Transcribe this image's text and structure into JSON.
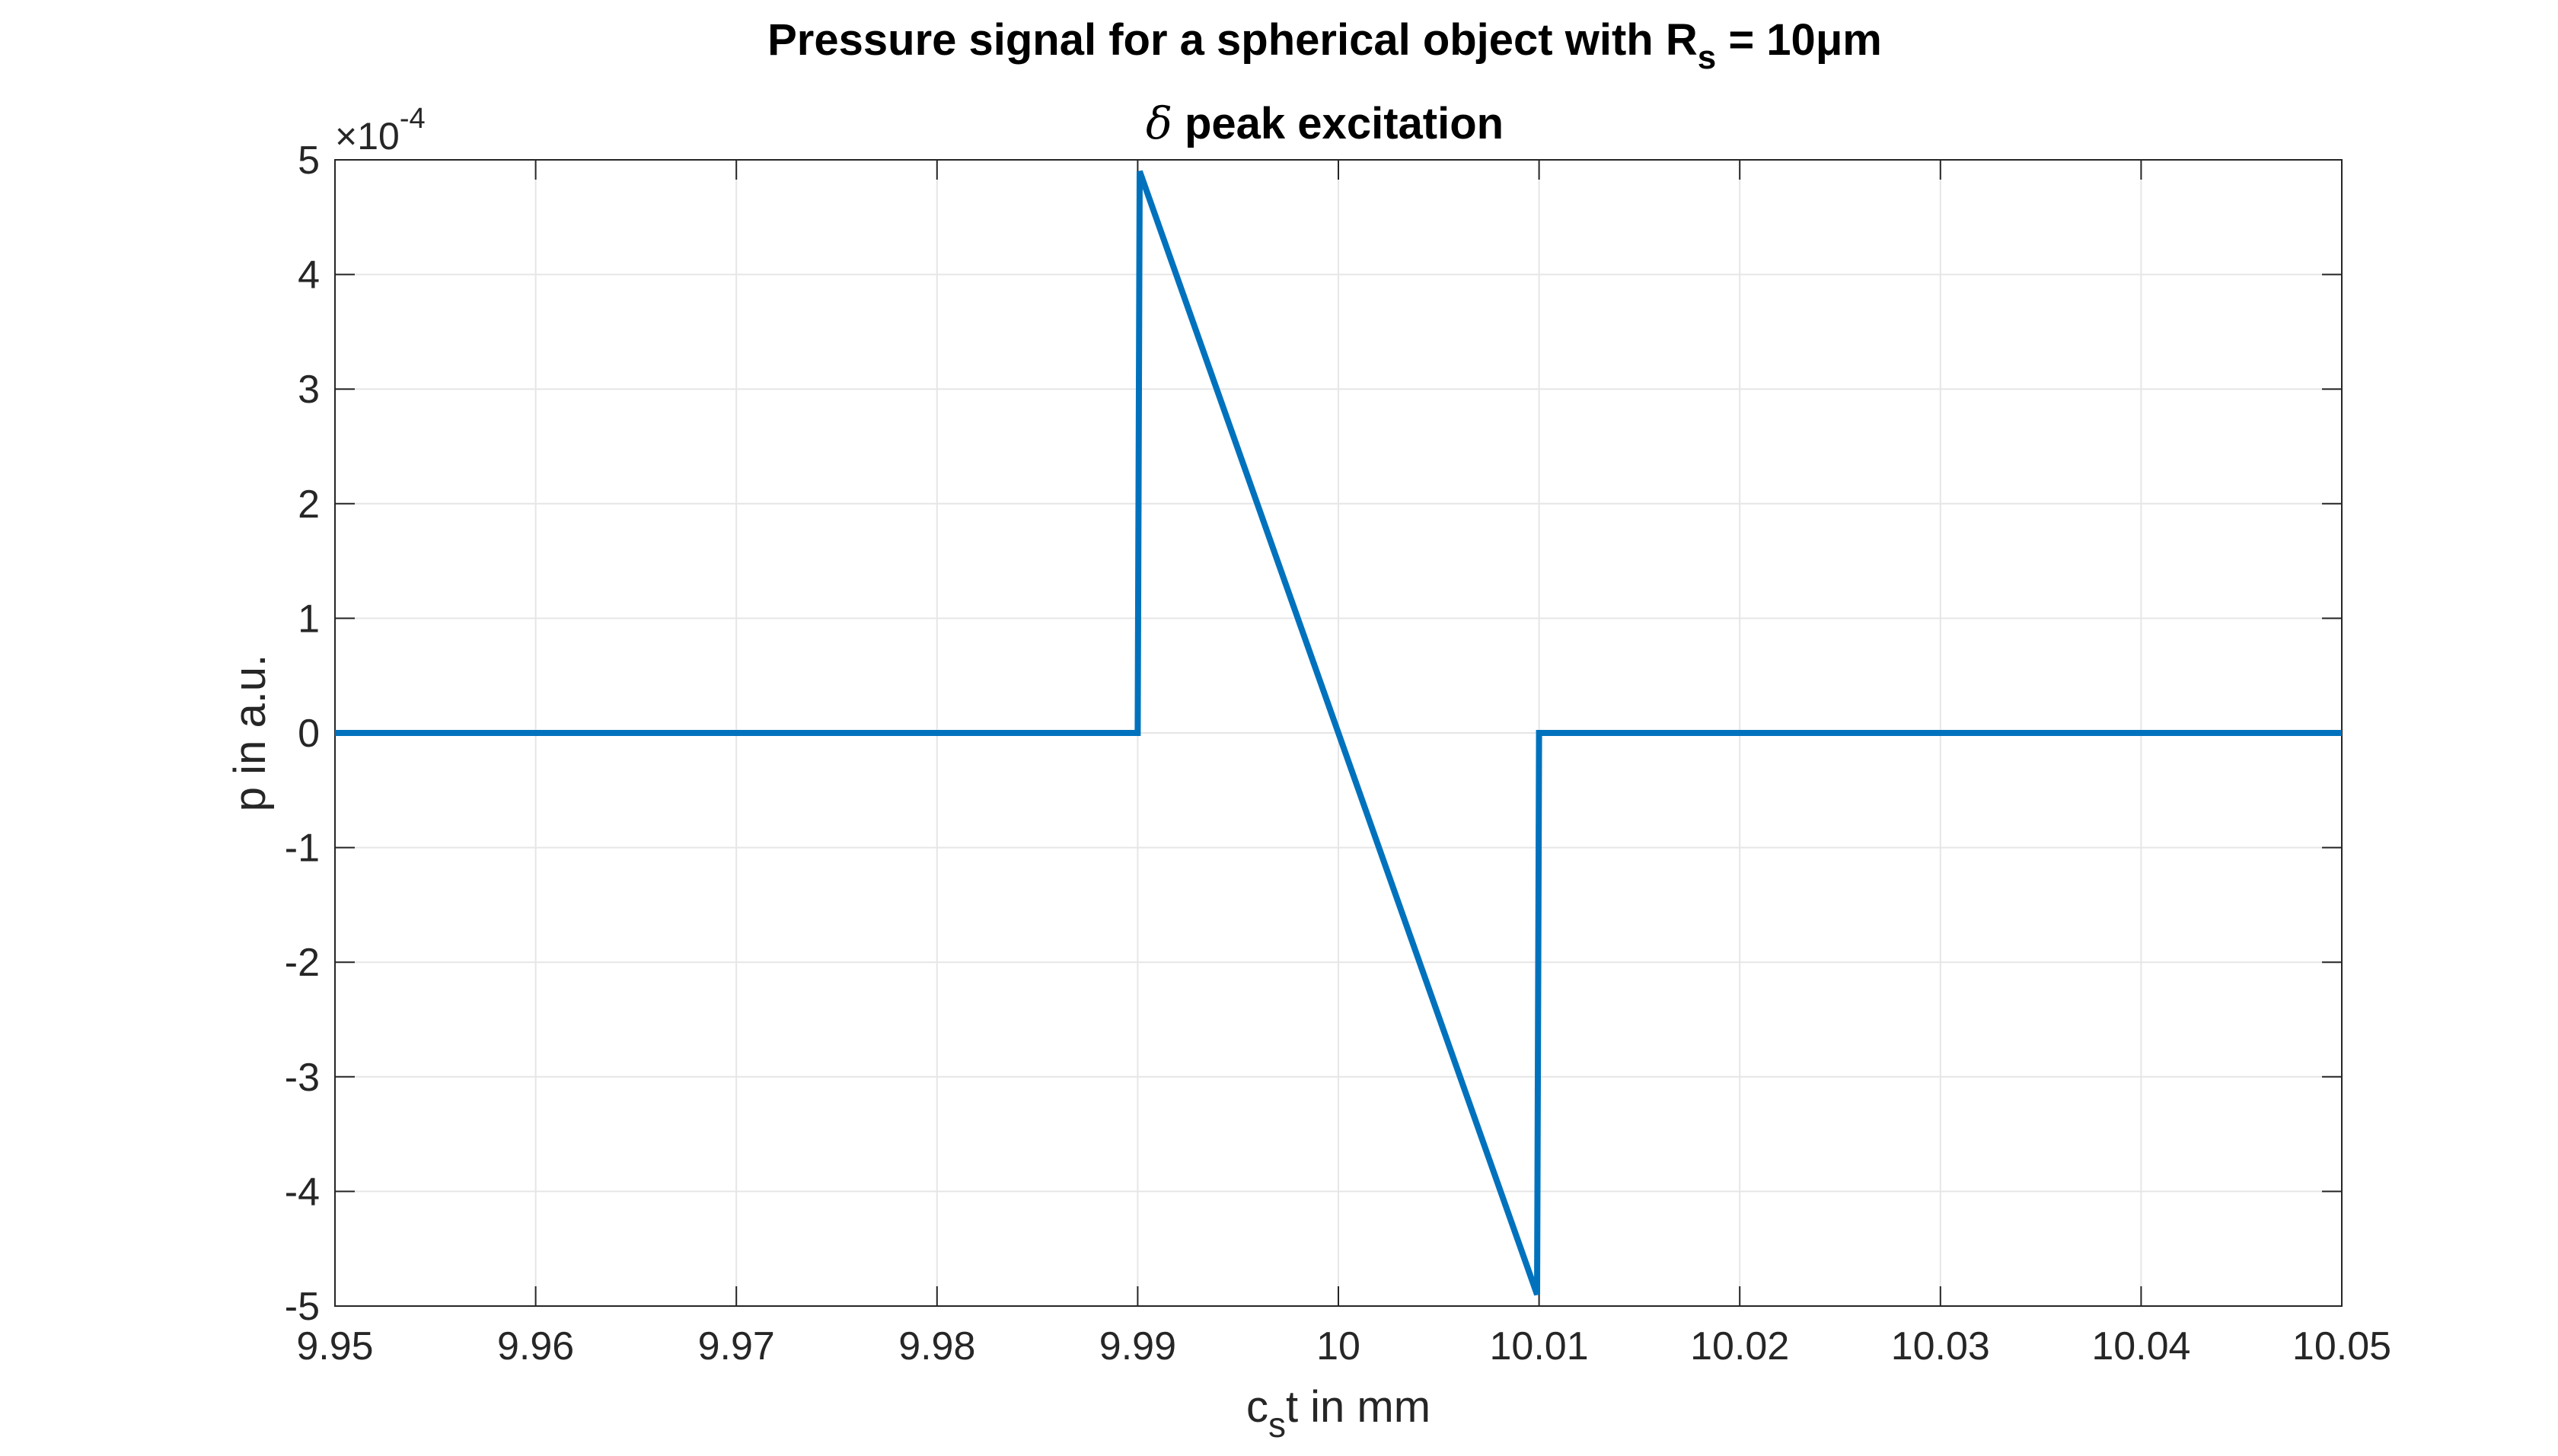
{
  "chart_data": {
    "type": "line",
    "title_main": "Pressure signal for a spherical object with R",
    "title_sub_symbol": "s",
    "title_rest": " = 10μm",
    "subtitle_symbol": "δ",
    "subtitle_rest": " peak excitation",
    "xlabel_base": "c",
    "xlabel_sub": "s",
    "xlabel_rest": "t in mm",
    "ylabel": "p in a.u.",
    "y_exponent_base": "×10",
    "y_exponent_power": "-4",
    "xlim": [
      9.95,
      10.05
    ],
    "ylim": [
      -5,
      5
    ],
    "xticks": [
      "9.95",
      "9.96",
      "9.97",
      "9.98",
      "9.99",
      "10",
      "10.01",
      "10.02",
      "10.03",
      "10.04",
      "10.05"
    ],
    "yticks": [
      "5",
      "4",
      "3",
      "2",
      "1",
      "0",
      "-1",
      "-2",
      "-3",
      "-4",
      "-5"
    ],
    "grid": true,
    "series": [
      {
        "color": "#0072BD",
        "x": [
          9.95,
          9.99,
          9.9901,
          10.0099,
          10.01,
          10.05
        ],
        "y": [
          0,
          0,
          4.9,
          -4.9,
          0,
          0
        ]
      }
    ]
  }
}
